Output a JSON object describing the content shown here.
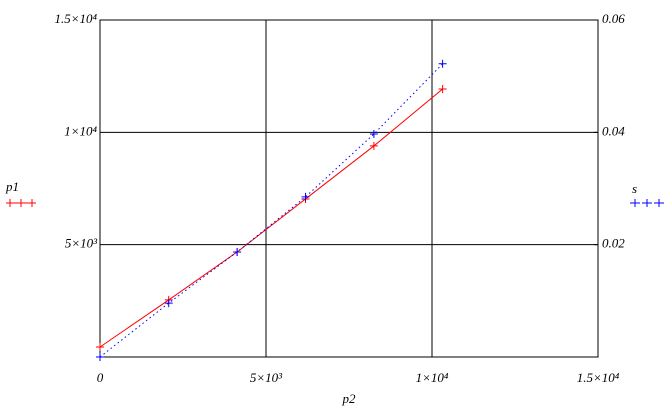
{
  "chart_data": {
    "type": "line",
    "x_label": "p2",
    "x": [
      0,
      2070,
      4130,
      6190,
      8250,
      10320
    ],
    "series": [
      {
        "name": "p1",
        "color": "#ff0000",
        "dash": "solid",
        "values": [
          445,
          2540,
          4675,
          7035,
          9395,
          11930
        ]
      },
      {
        "name": "s",
        "color": "#0000ff",
        "dash": "dotted",
        "axis": "y2",
        "values": [
          0,
          0.0096,
          0.0187,
          0.0285,
          0.0397,
          0.0522
        ]
      }
    ],
    "xlim": [
      0,
      15000
    ],
    "xticks": [
      {
        "value": 0,
        "label": "0"
      },
      {
        "value": 5000,
        "label": "5×10³"
      },
      {
        "value": 10000,
        "label": "1×10⁴"
      },
      {
        "value": 15000,
        "label": "1.5×10⁴"
      }
    ],
    "ylim": [
      0,
      15000
    ],
    "yticks": [
      {
        "value": 5000,
        "label": "5×10³"
      },
      {
        "value": 10000,
        "label": "1×10⁴"
      },
      {
        "value": 15000,
        "label": "1.5×10⁴"
      }
    ],
    "y2lim": [
      0,
      0.06
    ],
    "y2ticks": [
      0.02,
      0.04,
      0.06
    ],
    "grid": true
  }
}
